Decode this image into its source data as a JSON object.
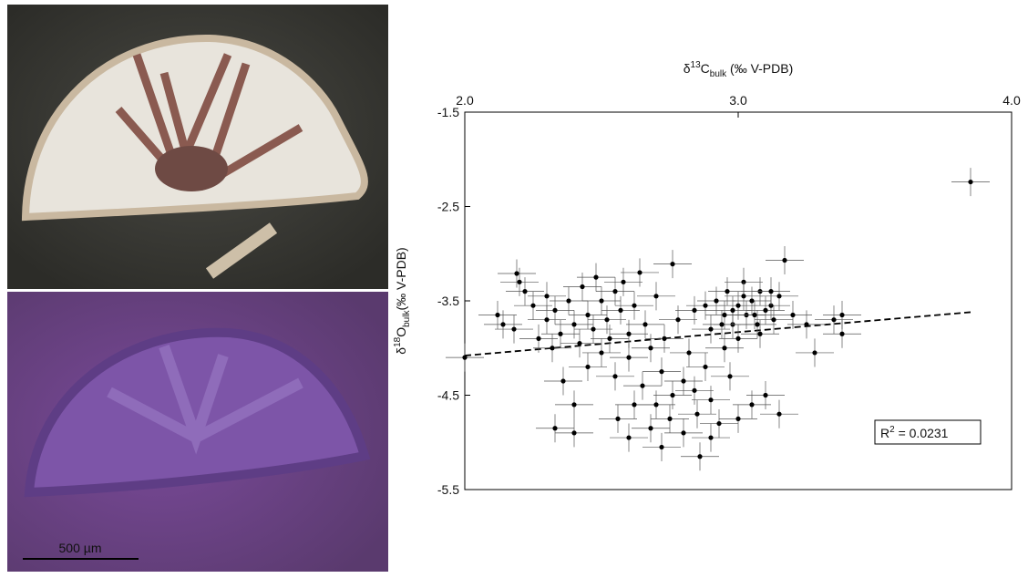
{
  "images": {
    "scale_label": "500 µm"
  },
  "chart_data": {
    "type": "scatter",
    "x_label": {
      "prefix": "δ",
      "sup": "13",
      "main": "C",
      "sub": "bulk",
      "suffix": " (‰ V-PDB)"
    },
    "y_label": {
      "prefix": "δ",
      "sup": "18",
      "main": "O",
      "sub": "bulk",
      "suffix": "(‰ V-PDB)"
    },
    "annotation": {
      "main": "R",
      "sup": "2",
      "rest": " = 0.0231"
    },
    "xlim": [
      2.0,
      4.0
    ],
    "xticks": [
      {
        "value": 2.0,
        "label": "2.0"
      },
      {
        "value": 3.0,
        "label": "3.0"
      },
      {
        "value": 4.0,
        "label": "4.0"
      }
    ],
    "ylim": [
      -5.5,
      -1.5
    ],
    "yticks": [
      -1.5,
      -2.5,
      -3.5,
      -4.5,
      -5.5
    ],
    "x_axis_position": "top",
    "color": "#000000",
    "x_error": 0.07,
    "y_error": 0.15,
    "trend_line": {
      "x": [
        2.0,
        3.85
      ],
      "y": [
        -4.08,
        -3.62
      ]
    },
    "x": [
      2.12,
      2.14,
      2.2,
      2.22,
      2.18,
      2.25,
      2.27,
      2.3,
      2.3,
      2.32,
      2.33,
      2.35,
      2.36,
      2.38,
      2.4,
      2.4,
      2.42,
      2.43,
      2.45,
      2.45,
      2.47,
      2.48,
      2.5,
      2.5,
      2.52,
      2.53,
      2.55,
      2.55,
      2.57,
      2.58,
      2.6,
      2.6,
      2.62,
      2.64,
      2.65,
      2.66,
      2.68,
      2.7,
      2.7,
      2.72,
      2.73,
      2.75,
      2.76,
      2.78,
      2.8,
      2.8,
      2.82,
      2.84,
      2.85,
      2.86,
      2.88,
      2.9,
      2.9,
      2.92,
      2.93,
      2.95,
      2.95,
      2.96,
      2.98,
      3.0,
      3.0,
      3.02,
      3.03,
      3.05,
      3.05,
      3.07,
      3.08,
      3.1,
      3.1,
      3.12,
      3.13,
      3.15,
      3.15,
      3.17,
      3.2,
      3.25,
      3.28,
      3.35,
      3.38,
      3.38,
      2.4,
      2.33,
      2.6,
      2.68,
      2.72,
      2.9,
      3.0,
      2.76,
      2.19,
      2.0,
      3.85,
      2.56,
      2.62,
      2.84,
      2.97,
      3.08,
      2.88,
      2.98,
      3.06,
      3.12,
      2.94,
      3.02
    ],
    "values": [
      -3.65,
      -3.75,
      -3.3,
      -3.4,
      -3.8,
      -3.55,
      -3.9,
      -3.7,
      -3.45,
      -4.0,
      -3.6,
      -3.85,
      -4.35,
      -3.5,
      -3.75,
      -4.6,
      -3.95,
      -3.35,
      -3.65,
      -4.2,
      -3.8,
      -3.25,
      -3.5,
      -4.05,
      -3.7,
      -3.9,
      -3.4,
      -4.3,
      -3.6,
      -3.3,
      -3.85,
      -4.1,
      -3.55,
      -3.2,
      -4.4,
      -3.75,
      -4.0,
      -4.6,
      -3.45,
      -4.25,
      -3.9,
      -4.75,
      -4.5,
      -3.7,
      -4.35,
      -4.9,
      -4.05,
      -3.6,
      -4.7,
      -5.15,
      -4.2,
      -3.8,
      -4.55,
      -3.5,
      -4.8,
      -3.65,
      -4.0,
      -3.4,
      -3.75,
      -3.55,
      -3.9,
      -3.3,
      -3.65,
      -3.5,
      -4.6,
      -3.75,
      -3.4,
      -3.6,
      -4.5,
      -3.55,
      -3.7,
      -4.7,
      -3.45,
      -3.07,
      -3.65,
      -3.75,
      -4.05,
      -3.7,
      -3.65,
      -3.85,
      -4.9,
      -4.85,
      -4.95,
      -4.85,
      -5.05,
      -4.95,
      -4.75,
      -3.11,
      -3.21,
      -4.1,
      -2.24,
      -4.75,
      -4.6,
      -4.45,
      -4.3,
      -3.85,
      -3.55,
      -3.6,
      -3.65,
      -3.4,
      -3.75,
      -3.45
    ]
  }
}
